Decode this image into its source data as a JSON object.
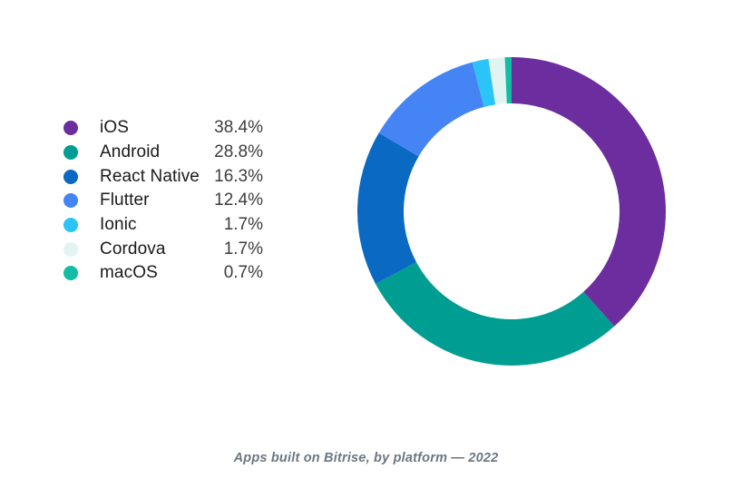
{
  "page": {
    "background_color": "#ffffff"
  },
  "legend": {
    "items": [
      {
        "label": "iOS",
        "value": "38.4%",
        "color": "#6C2E9E"
      },
      {
        "label": "Android",
        "value": "28.8%",
        "color": "#009E92"
      },
      {
        "label": "React Native",
        "value": "16.3%",
        "color": "#0A69C2"
      },
      {
        "label": "Flutter",
        "value": "12.4%",
        "color": "#4584F4"
      },
      {
        "label": "Ionic",
        "value": "1.7%",
        "color": "#2AC4F6"
      },
      {
        "label": "Cordova",
        "value": "1.7%",
        "color": "#E1F4F2"
      },
      {
        "label": "macOS",
        "value": "0.7%",
        "color": "#12BDA3"
      }
    ]
  },
  "caption": {
    "text": "Apps built on Bitrise, by platform — 2022",
    "color": "#6D7680"
  },
  "chart_data": {
    "type": "pie",
    "variant": "donut",
    "title": "Apps built on Bitrise, by platform — 2022",
    "categories": [
      "iOS",
      "Android",
      "React Native",
      "Flutter",
      "Ionic",
      "Cordova",
      "macOS"
    ],
    "values": [
      38.4,
      28.8,
      16.3,
      12.4,
      1.7,
      1.7,
      0.7
    ],
    "unit": "%",
    "colors": [
      "#6C2E9E",
      "#009E92",
      "#0A69C2",
      "#4584F4",
      "#2AC4F6",
      "#E1F4F2",
      "#12BDA3"
    ],
    "start_angle_deg": 0,
    "direction": "clockwise",
    "inner_radius_ratio": 0.7,
    "outer_radius_px": 170,
    "legend_position": "left",
    "data_labels": "none",
    "background": "#ffffff"
  }
}
